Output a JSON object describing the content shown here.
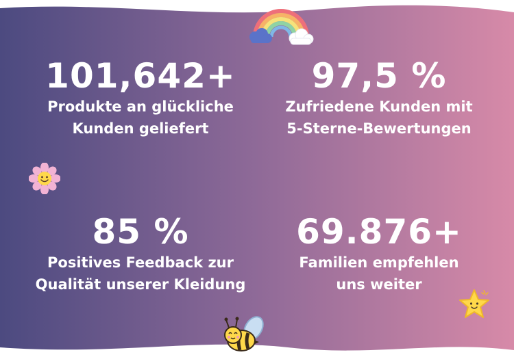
{
  "stats": [
    {
      "value": "101,642+",
      "label_line1": "Produkte an glückliche",
      "label_line2": "Kunden geliefert"
    },
    {
      "value": "97,5 %",
      "label_line1": "Zufriedene Kunden mit",
      "label_line2": "5-Sterne-Bewertungen"
    },
    {
      "value": "85 %",
      "label_line1": "Positives Feedback zur",
      "label_line2": "Qualität unserer Kleidung"
    },
    {
      "value": "69.876+",
      "label_line1": "Familien empfehlen",
      "label_line2": "uns weiter"
    }
  ],
  "colors": {
    "gradient_left": "#4c4a80",
    "gradient_mid": "#8f6a98",
    "gradient_right": "#d78aa8",
    "text": "#ffffff"
  },
  "icons": [
    "rainbow-icon",
    "flower-icon",
    "star-icon",
    "bee-icon"
  ]
}
